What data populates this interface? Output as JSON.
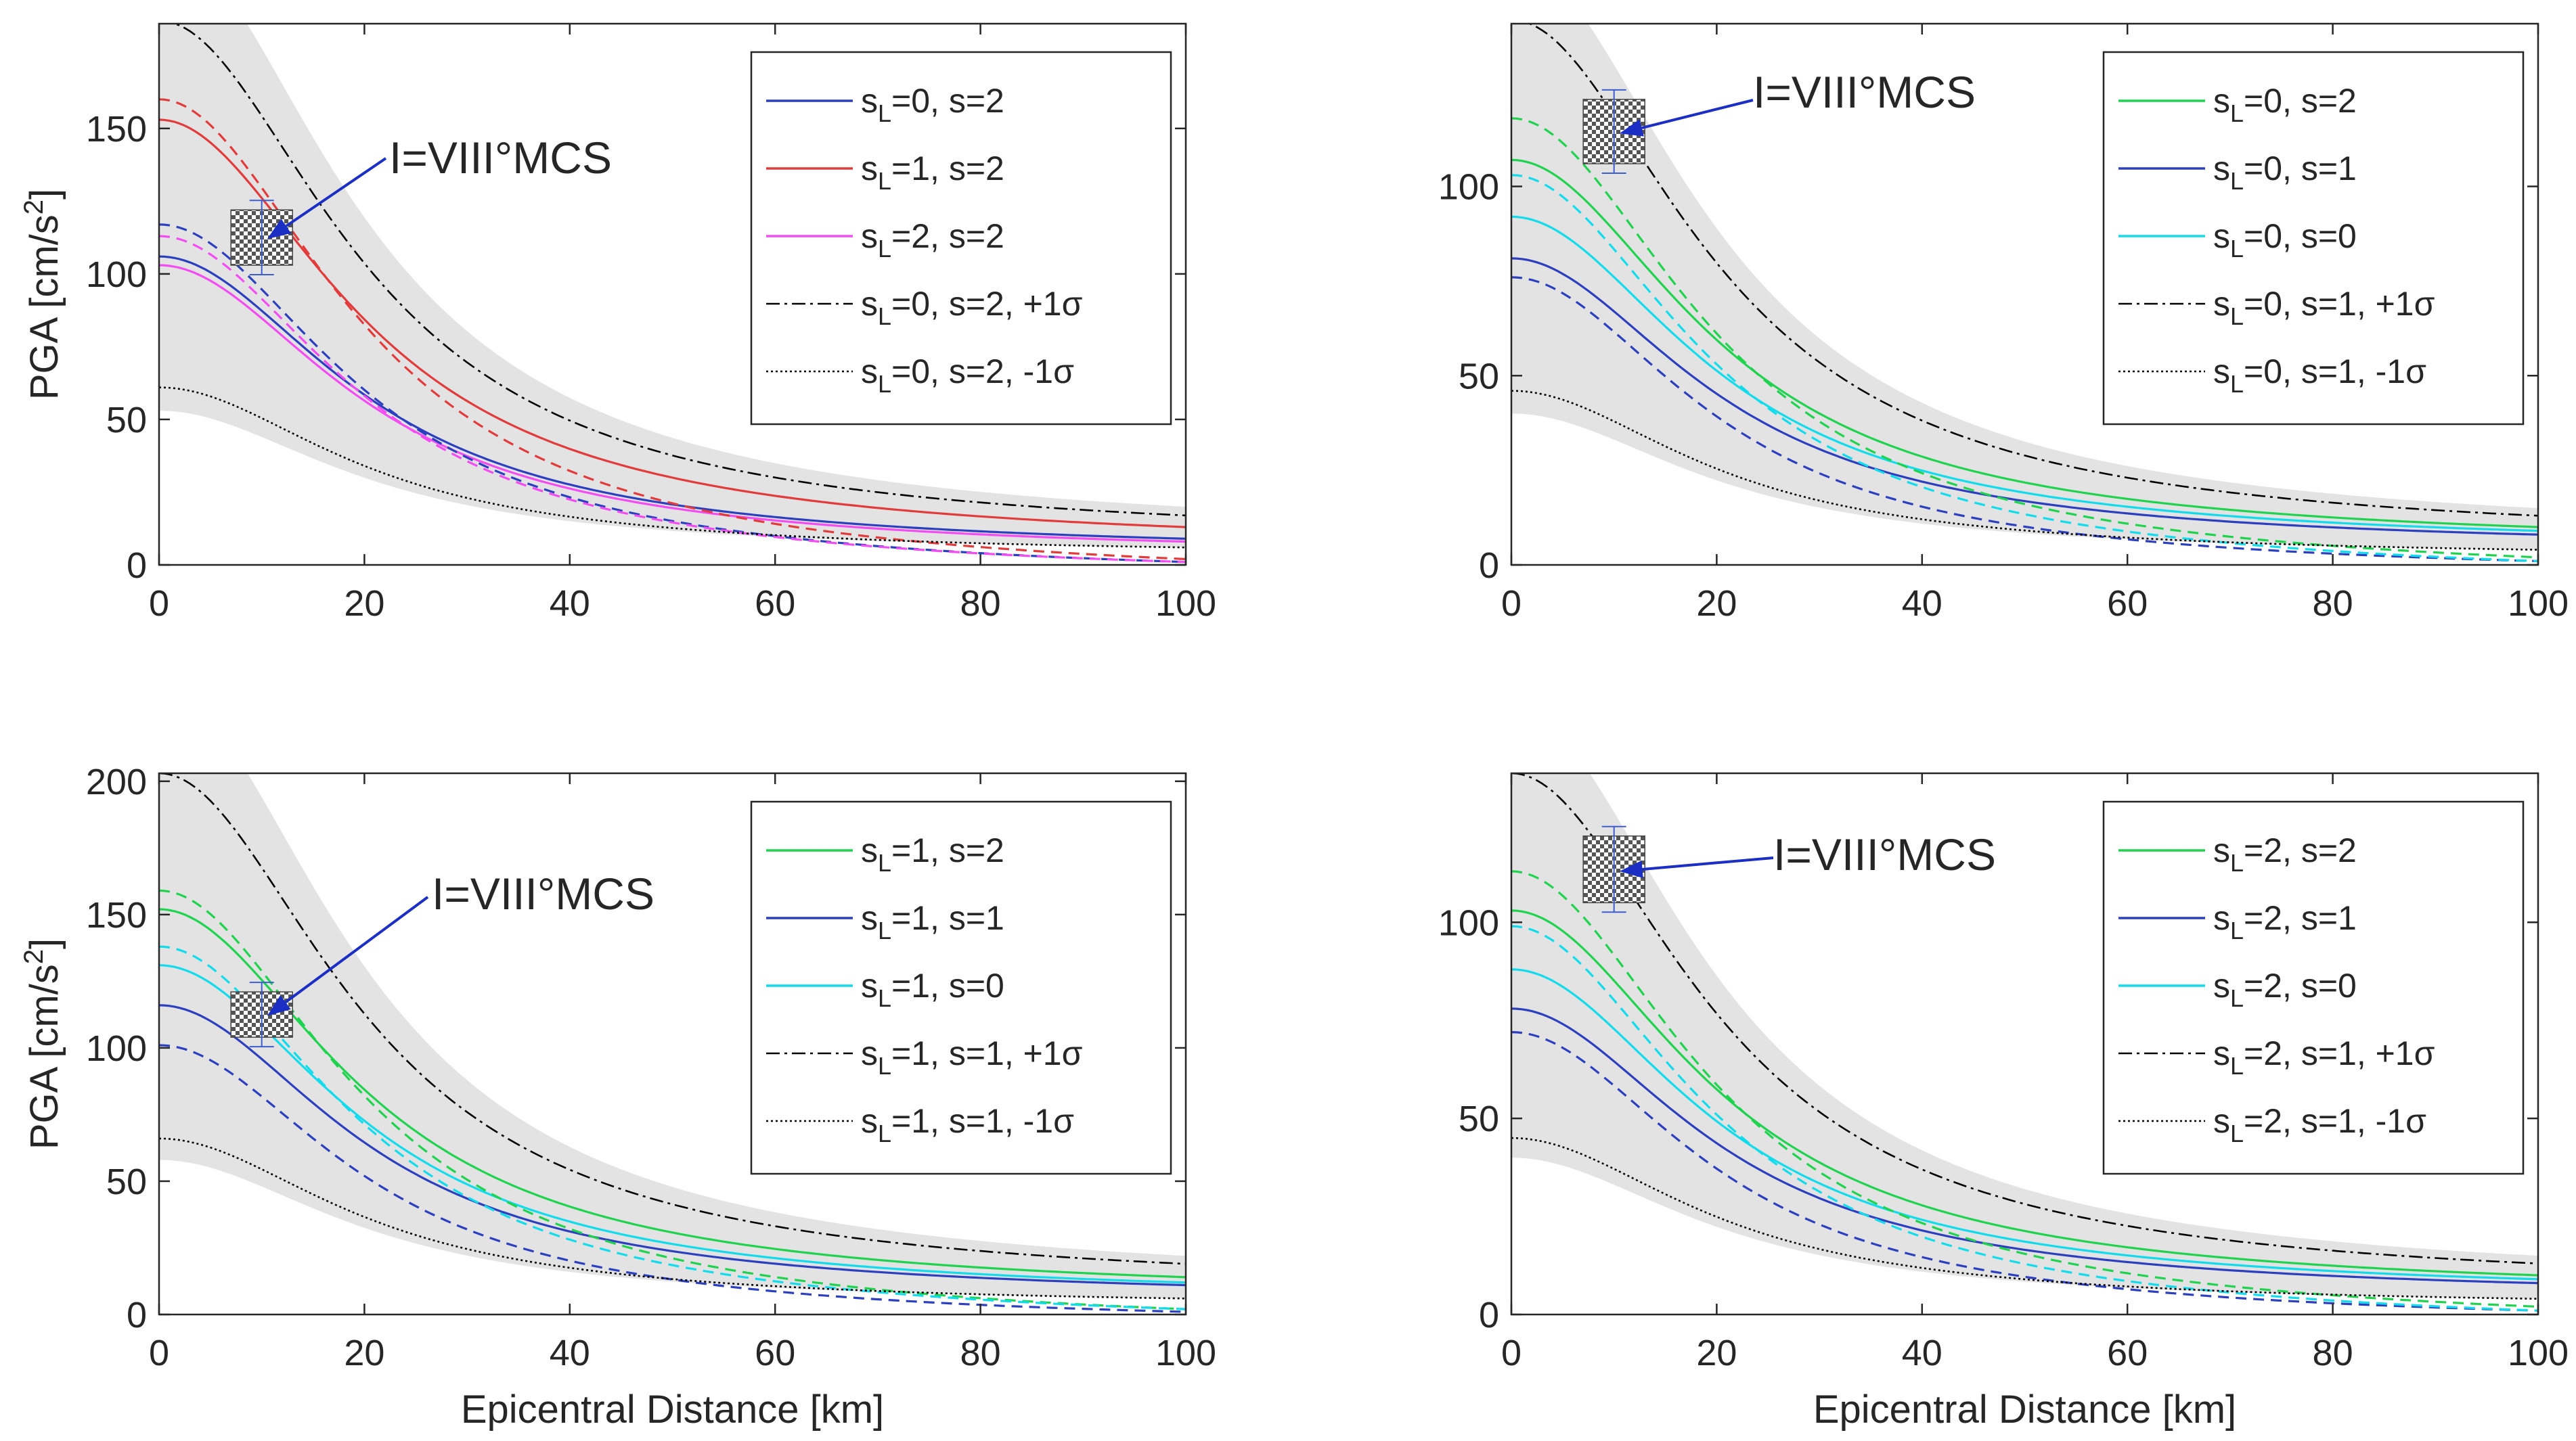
{
  "figure": {
    "annotation_text": "I=VIII°MCS",
    "colors": {
      "band": "#e3e3e3",
      "frame": "#262626",
      "blue": "#2b3fbf",
      "red": "#e23b3b",
      "magenta": "#f24cf2",
      "green": "#1fd34f",
      "cyan": "#12dcec",
      "black": "#000000",
      "arrow": "#1b2fc4"
    }
  },
  "chart_data": [
    {
      "type": "line",
      "xlabel": "",
      "ylabel": "PGA [cm/s^2]",
      "xlim": [
        0,
        100
      ],
      "ylim": [
        0,
        186
      ],
      "xticks": [
        0,
        20,
        40,
        60,
        80,
        100
      ],
      "yticks": [
        0,
        50,
        100,
        150
      ],
      "observation": {
        "x": 10,
        "y": 112,
        "ylow": 103,
        "yhigh": 122,
        "label": "I=VIII°MCS"
      },
      "band": {
        "upper_peak": 215,
        "upper_end": 20,
        "lower_peak": 53,
        "lower_end": 6
      },
      "legend": [
        {
          "sub": "0",
          "text": ", s=2",
          "color": "blue",
          "dash": "solid"
        },
        {
          "sub": "1",
          "text": ", s=2",
          "color": "red",
          "dash": "solid"
        },
        {
          "sub": "2",
          "text": ", s=2",
          "color": "magenta",
          "dash": "solid"
        },
        {
          "sub": "0",
          "text": ", s=2, +1σ",
          "color": "black",
          "dash": "dashdot"
        },
        {
          "sub": "0",
          "text": ", s=2, -1σ",
          "color": "black",
          "dash": "dotted"
        }
      ],
      "series": [
        {
          "color": "blue",
          "dash": "solid",
          "peak": 106,
          "end": 9
        },
        {
          "color": "red",
          "dash": "solid",
          "peak": 153,
          "end": 13
        },
        {
          "color": "magenta",
          "dash": "solid",
          "peak": 103,
          "end": 8
        },
        {
          "color": "blue",
          "dash": "dashed",
          "peak": 117,
          "end": 1
        },
        {
          "color": "red",
          "dash": "dashed",
          "peak": 160,
          "end": 2
        },
        {
          "color": "magenta",
          "dash": "dashed",
          "peak": 113,
          "end": 1
        },
        {
          "color": "black",
          "dash": "dashdot",
          "peak": 187,
          "end": 17
        },
        {
          "color": "black",
          "dash": "dotted",
          "peak": 61,
          "end": 6
        }
      ]
    },
    {
      "type": "line",
      "xlabel": "",
      "ylabel": "",
      "xlim": [
        0,
        100
      ],
      "ylim": [
        0,
        143
      ],
      "xticks": [
        0,
        20,
        40,
        60,
        80,
        100
      ],
      "yticks": [
        0,
        50,
        100
      ],
      "observation": {
        "x": 10,
        "y": 114,
        "ylow": 106,
        "yhigh": 123,
        "label": "I=VIII°MCS"
      },
      "band": {
        "upper_peak": 160,
        "upper_end": 15,
        "lower_peak": 40,
        "lower_end": 4
      },
      "legend": [
        {
          "sub": "0",
          "text": ", s=2",
          "color": "green",
          "dash": "solid"
        },
        {
          "sub": "0",
          "text": ", s=1",
          "color": "blue",
          "dash": "solid"
        },
        {
          "sub": "0",
          "text": ", s=0",
          "color": "cyan",
          "dash": "solid"
        },
        {
          "sub": "0",
          "text": ", s=1, +1σ",
          "color": "black",
          "dash": "dashdot"
        },
        {
          "sub": "0",
          "text": ", s=1, -1σ",
          "color": "black",
          "dash": "dotted"
        }
      ],
      "series": [
        {
          "color": "green",
          "dash": "solid",
          "peak": 107,
          "end": 10
        },
        {
          "color": "blue",
          "dash": "solid",
          "peak": 81,
          "end": 8
        },
        {
          "color": "cyan",
          "dash": "solid",
          "peak": 92,
          "end": 9
        },
        {
          "color": "green",
          "dash": "dashed",
          "peak": 118,
          "end": 2
        },
        {
          "color": "blue",
          "dash": "dashed",
          "peak": 76,
          "end": 1
        },
        {
          "color": "cyan",
          "dash": "dashed",
          "peak": 103,
          "end": 1
        },
        {
          "color": "black",
          "dash": "dashdot",
          "peak": 144,
          "end": 13
        },
        {
          "color": "black",
          "dash": "dotted",
          "peak": 46,
          "end": 4
        }
      ]
    },
    {
      "type": "line",
      "xlabel": "Epicentral Distance [km]",
      "ylabel": "PGA [cm/s^2]",
      "xlim": [
        0,
        100
      ],
      "ylim": [
        0,
        203
      ],
      "xticks": [
        0,
        20,
        40,
        60,
        80,
        100
      ],
      "yticks": [
        0,
        50,
        100,
        150,
        200
      ],
      "observation": {
        "x": 10,
        "y": 112,
        "ylow": 104,
        "yhigh": 121,
        "label": "I=VIII°MCS"
      },
      "band": {
        "upper_peak": 235,
        "upper_end": 22,
        "lower_peak": 58,
        "lower_end": 6
      },
      "legend": [
        {
          "sub": "1",
          "text": ", s=2",
          "color": "green",
          "dash": "solid"
        },
        {
          "sub": "1",
          "text": ", s=1",
          "color": "blue",
          "dash": "solid"
        },
        {
          "sub": "1",
          "text": ", s=0",
          "color": "cyan",
          "dash": "solid"
        },
        {
          "sub": "1",
          "text": ", s=1, +1σ",
          "color": "black",
          "dash": "dashdot"
        },
        {
          "sub": "1",
          "text": ", s=1, -1σ",
          "color": "black",
          "dash": "dotted"
        }
      ],
      "series": [
        {
          "color": "green",
          "dash": "solid",
          "peak": 152,
          "end": 14
        },
        {
          "color": "blue",
          "dash": "solid",
          "peak": 116,
          "end": 11
        },
        {
          "color": "cyan",
          "dash": "solid",
          "peak": 131,
          "end": 12
        },
        {
          "color": "green",
          "dash": "dashed",
          "peak": 159,
          "end": 2
        },
        {
          "color": "blue",
          "dash": "dashed",
          "peak": 101,
          "end": 1
        },
        {
          "color": "cyan",
          "dash": "dashed",
          "peak": 138,
          "end": 2
        },
        {
          "color": "black",
          "dash": "dashdot",
          "peak": 203,
          "end": 19
        },
        {
          "color": "black",
          "dash": "dotted",
          "peak": 66,
          "end": 6
        }
      ]
    },
    {
      "type": "line",
      "xlabel": "Epicentral Distance [km]",
      "ylabel": "",
      "xlim": [
        0,
        100
      ],
      "ylim": [
        0,
        138
      ],
      "xticks": [
        0,
        20,
        40,
        60,
        80,
        100
      ],
      "yticks": [
        0,
        50,
        100
      ],
      "observation": {
        "x": 10,
        "y": 113,
        "ylow": 105,
        "yhigh": 122,
        "label": "I=VIII°MCS"
      },
      "band": {
        "upper_peak": 155,
        "upper_end": 15,
        "lower_peak": 40,
        "lower_end": 4
      },
      "legend": [
        {
          "sub": "2",
          "text": ", s=2",
          "color": "green",
          "dash": "solid"
        },
        {
          "sub": "2",
          "text": ", s=1",
          "color": "blue",
          "dash": "solid"
        },
        {
          "sub": "2",
          "text": ", s=0",
          "color": "cyan",
          "dash": "solid"
        },
        {
          "sub": "2",
          "text": ", s=1, +1σ",
          "color": "black",
          "dash": "dashdot"
        },
        {
          "sub": "2",
          "text": ", s=1, -1σ",
          "color": "black",
          "dash": "dotted"
        }
      ],
      "series": [
        {
          "color": "green",
          "dash": "solid",
          "peak": 103,
          "end": 10
        },
        {
          "color": "blue",
          "dash": "solid",
          "peak": 78,
          "end": 8
        },
        {
          "color": "cyan",
          "dash": "solid",
          "peak": 88,
          "end": 9
        },
        {
          "color": "green",
          "dash": "dashed",
          "peak": 113,
          "end": 2
        },
        {
          "color": "blue",
          "dash": "dashed",
          "peak": 72,
          "end": 1
        },
        {
          "color": "cyan",
          "dash": "dashed",
          "peak": 99,
          "end": 1
        },
        {
          "color": "black",
          "dash": "dashdot",
          "peak": 138,
          "end": 13
        },
        {
          "color": "black",
          "dash": "dotted",
          "peak": 45,
          "end": 4
        }
      ]
    }
  ]
}
